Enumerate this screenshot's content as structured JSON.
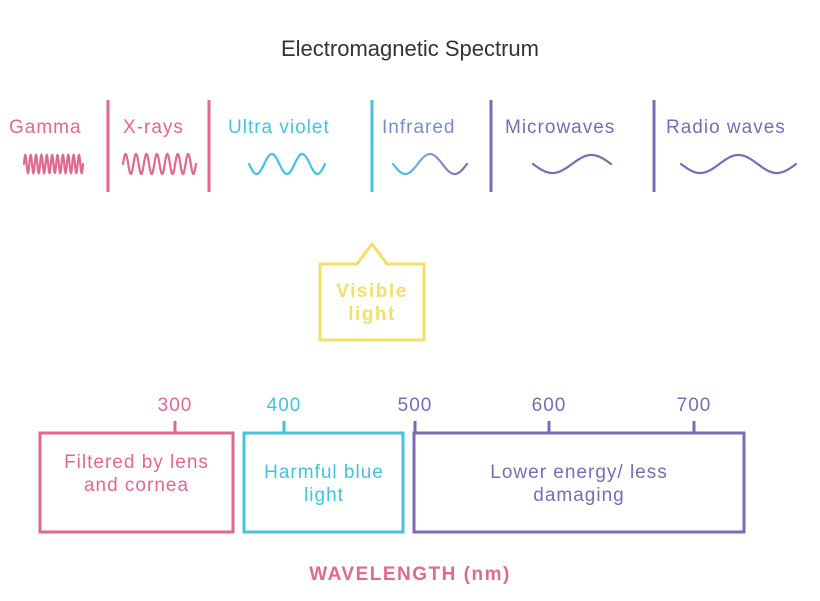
{
  "title": "Electromagnetic Spectrum",
  "bands": [
    {
      "label": "Gamma"
    },
    {
      "label": "X-rays"
    },
    {
      "label": "Ultra violet"
    },
    {
      "label": "Infrared"
    },
    {
      "label": "Microwaves"
    },
    {
      "label": "Radio waves"
    }
  ],
  "visible_label": "Visible light",
  "ticks": [
    "300",
    "400",
    "500",
    "600",
    "700"
  ],
  "boxes": [
    {
      "label": "Filtered by lens and cornea"
    },
    {
      "label": "Harmful blue light"
    },
    {
      "label": "Lower energy/ less damaging"
    }
  ],
  "axis_label": "WAVELENGTH (nm)",
  "colors": {
    "pink": "#E0698F",
    "cyan": "#45C2DC",
    "purple": "#7B6BB5",
    "yellow": "#F6DE6A",
    "title": "#333333"
  }
}
